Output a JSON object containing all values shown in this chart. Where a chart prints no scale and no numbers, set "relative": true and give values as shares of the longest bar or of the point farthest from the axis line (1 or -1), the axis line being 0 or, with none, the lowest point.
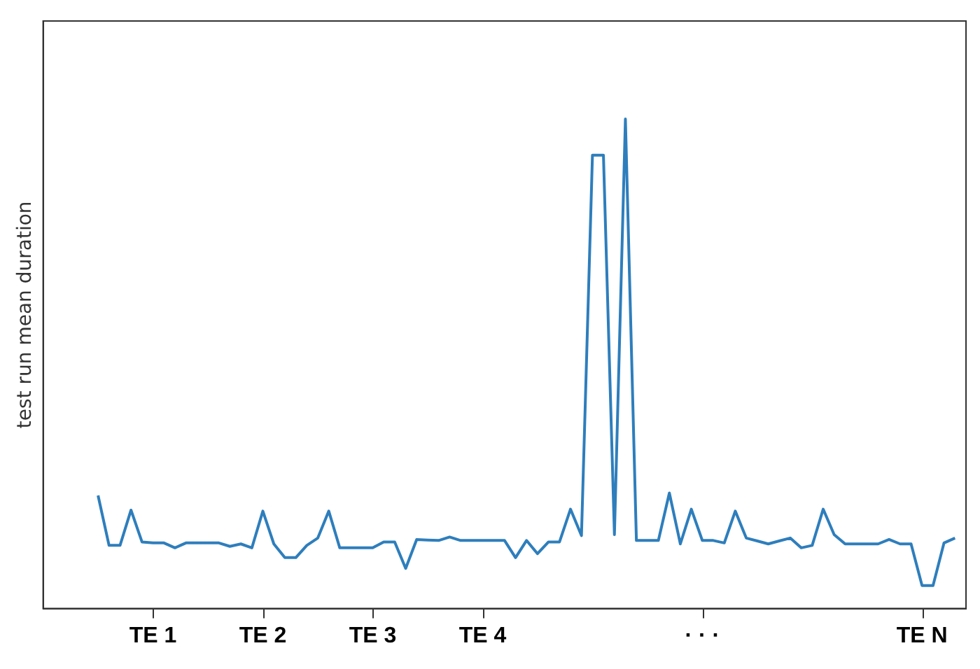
{
  "chart_data": {
    "type": "line",
    "ylabel": "test run mean duration",
    "relative": true,
    "color": "#2e7ebc",
    "grid": false,
    "legend": false,
    "marker": "none",
    "line_style": "solid",
    "categories": [
      null,
      null,
      null,
      null,
      null,
      null,
      null,
      null,
      null,
      null,
      "TE 1",
      null,
      null,
      null,
      null,
      null,
      null,
      null,
      null,
      null,
      "TE 2",
      null,
      null,
      null,
      null,
      null,
      null,
      null,
      null,
      null,
      "TE 3",
      null,
      null,
      null,
      null,
      null,
      null,
      null,
      null,
      null,
      "TE 4",
      null,
      null,
      null,
      null,
      null,
      null,
      null,
      null,
      null,
      null,
      null,
      null,
      null,
      null,
      null,
      null,
      null,
      null,
      null,
      "· · ·",
      null,
      null,
      null,
      null,
      null,
      null,
      null,
      null,
      null,
      null,
      null,
      null,
      null,
      null,
      null,
      null,
      null,
      null,
      null,
      "TE N",
      null,
      null,
      null,
      null
    ],
    "values": [
      null,
      null,
      null,
      null,
      null,
      0.231,
      0.129,
      0.129,
      0.201,
      0.136,
      0.134,
      0.134,
      0.124,
      0.134,
      0.134,
      0.134,
      0.134,
      0.127,
      0.132,
      0.124,
      0.199,
      0.132,
      0.104,
      0.104,
      0.129,
      0.144,
      0.199,
      0.124,
      0.124,
      0.124,
      0.124,
      0.136,
      0.136,
      0.082,
      0.141,
      0.14,
      0.139,
      0.146,
      0.139,
      0.139,
      0.139,
      0.139,
      0.139,
      0.104,
      0.139,
      0.112,
      0.136,
      0.136,
      0.203,
      0.149,
      0.926,
      0.926,
      0.151,
      1,
      0.139,
      0.139,
      0.139,
      0.236,
      0.132,
      0.203,
      0.139,
      0.139,
      0.134,
      0.199,
      0.144,
      0.138,
      0.132,
      0.138,
      0.144,
      0.124,
      0.129,
      0.203,
      0.151,
      0.132,
      0.132,
      0.132,
      0.132,
      0.141,
      0.132,
      0.132,
      0.047,
      0.047,
      0.134,
      0.144,
      null
    ]
  }
}
